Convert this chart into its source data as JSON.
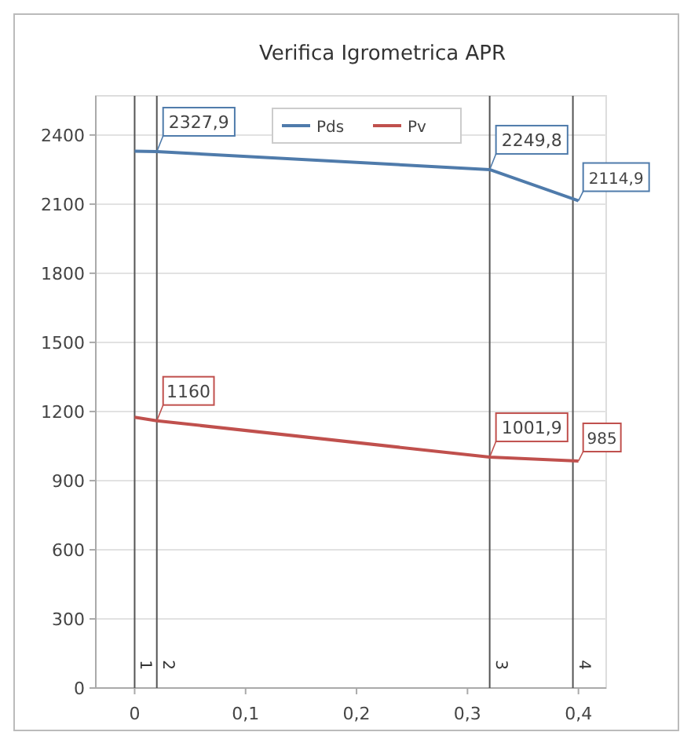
{
  "chart_data": {
    "type": "line",
    "title": "Verifica Igrometrica APR",
    "x": [
      0,
      0.02,
      0.32,
      0.4
    ],
    "series": [
      {
        "name": "Pds",
        "color": "#4f7bab",
        "values": [
          2330,
          2327.9,
          2249.8,
          2114.9
        ],
        "value_labels": [
          null,
          "2327,9",
          "2249,8",
          "2114,9"
        ]
      },
      {
        "name": "Pv",
        "color": "#c0504d",
        "values": [
          1175,
          1160,
          1001.9,
          985
        ],
        "value_labels": [
          null,
          "1160",
          "1001,9",
          "985"
        ]
      }
    ],
    "xlim": [
      -0.035,
      0.425
    ],
    "ylim": [
      0,
      2570
    ],
    "xticks": [
      0,
      {
        "value": 0.1,
        "label": "0,1"
      },
      {
        "value": 0.2,
        "label": "0,2"
      },
      {
        "value": 0.3,
        "label": "0,3"
      },
      {
        "value": 0.4,
        "label": "0,4"
      }
    ],
    "yticks": [
      0,
      300,
      600,
      900,
      1200,
      1500,
      1800,
      2100,
      2400
    ],
    "ref_lines": [
      {
        "axis": "x",
        "value": 0,
        "color": "#555555"
      },
      {
        "axis": "x",
        "value": 0.02,
        "color": "#555555"
      },
      {
        "axis": "x",
        "value": 0.32,
        "color": "#555555"
      },
      {
        "axis": "x",
        "value": 0.395,
        "color": "#555555"
      }
    ],
    "annotations": [
      {
        "text": "1",
        "x": 0,
        "y": 100
      },
      {
        "text": "2",
        "x": 0.02,
        "y": 100
      },
      {
        "text": "3",
        "x": 0.32,
        "y": 100
      },
      {
        "text": "4",
        "x": 0.395,
        "y": 100
      }
    ],
    "grid": "y",
    "legend": "top",
    "marker": "none",
    "line_style": "solid"
  }
}
